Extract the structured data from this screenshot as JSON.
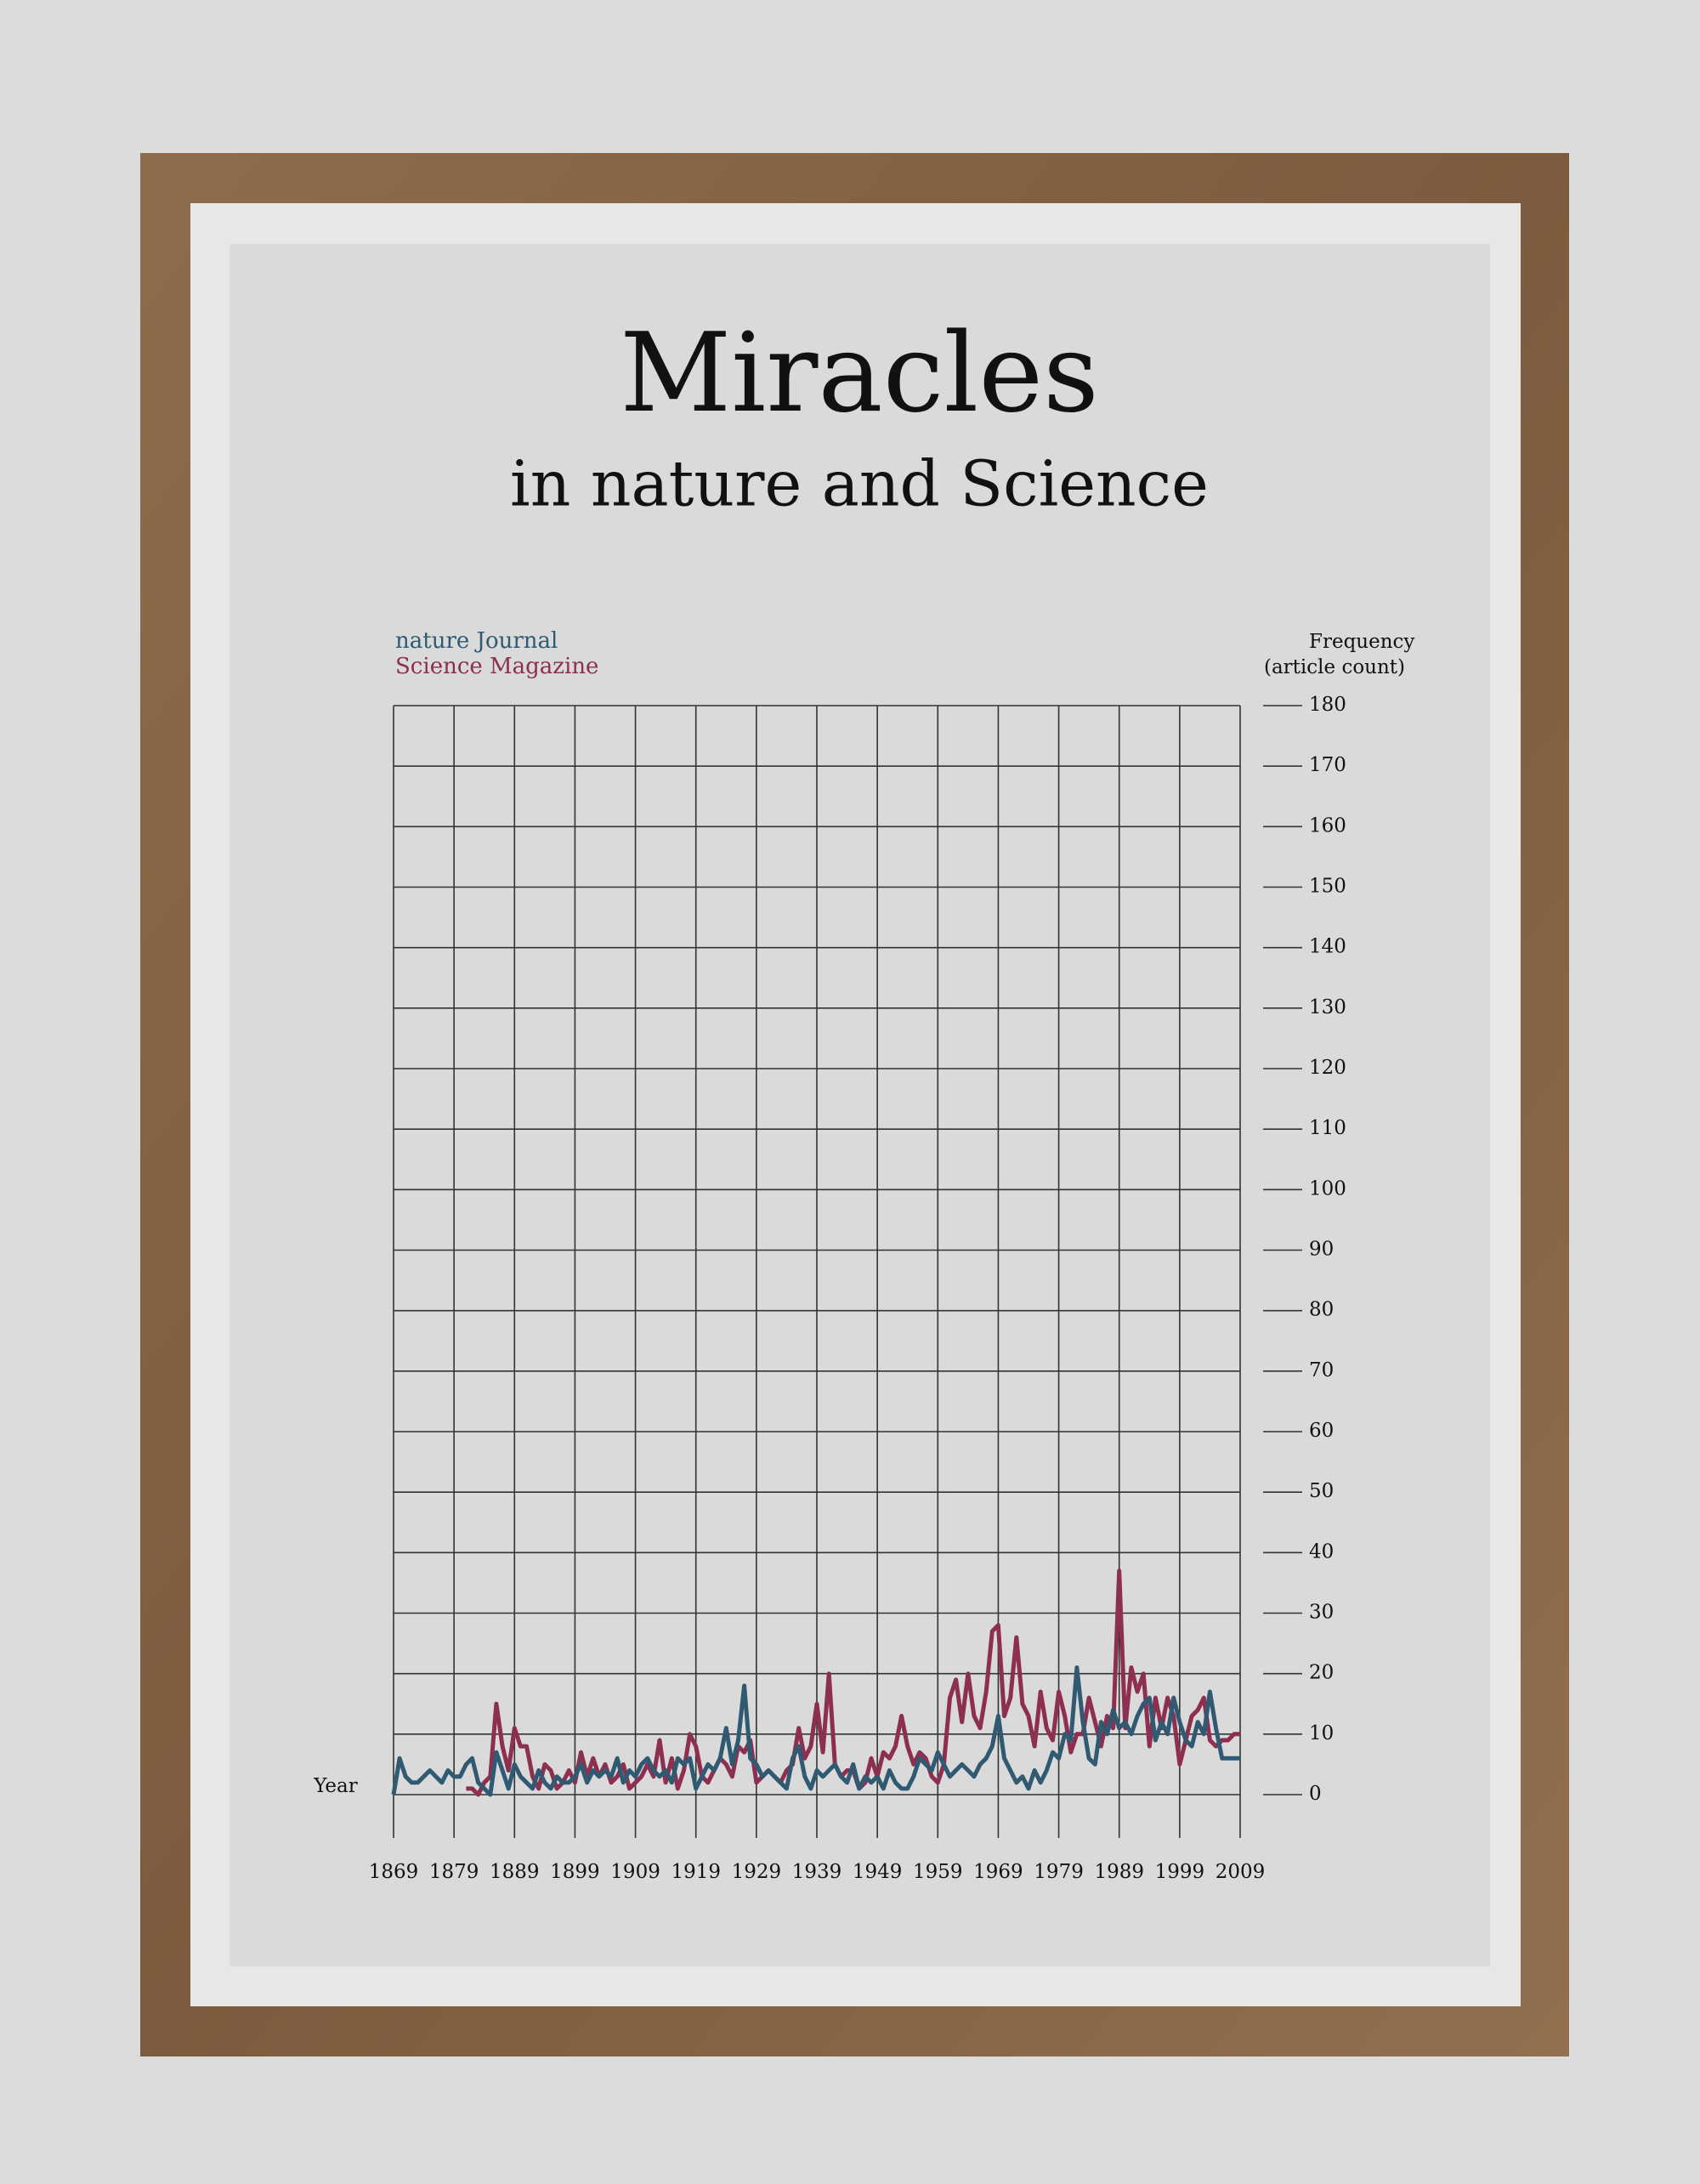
{
  "chart_data": {
    "type": "line",
    "title": "Miracles",
    "subtitle": "in nature and Science",
    "y_label": [
      "Frequency",
      "(article count)"
    ],
    "x_label": "Year",
    "x": [
      1869,
      1870,
      1871,
      1872,
      1873,
      1874,
      1875,
      1876,
      1877,
      1878,
      1879,
      1880,
      1881,
      1882,
      1883,
      1884,
      1885,
      1886,
      1887,
      1888,
      1889,
      1890,
      1891,
      1892,
      1893,
      1894,
      1895,
      1896,
      1897,
      1898,
      1899,
      1900,
      1901,
      1902,
      1903,
      1904,
      1905,
      1906,
      1907,
      1908,
      1909,
      1910,
      1911,
      1912,
      1913,
      1914,
      1915,
      1916,
      1917,
      1918,
      1919,
      1920,
      1921,
      1922,
      1923,
      1924,
      1925,
      1926,
      1927,
      1928,
      1929,
      1930,
      1931,
      1932,
      1933,
      1934,
      1935,
      1936,
      1937,
      1938,
      1939,
      1940,
      1941,
      1942,
      1943,
      1944,
      1945,
      1946,
      1947,
      1948,
      1949,
      1950,
      1951,
      1952,
      1953,
      1954,
      1955,
      1956,
      1957,
      1958,
      1959,
      1960,
      1961,
      1962,
      1963,
      1964,
      1965,
      1966,
      1967,
      1968,
      1969,
      1970,
      1971,
      1972,
      1973,
      1974,
      1975,
      1976,
      1977,
      1978,
      1979,
      1980,
      1981,
      1982,
      1983,
      1984,
      1985,
      1986,
      1987,
      1988,
      1989,
      1990,
      1991,
      1992,
      1993,
      1994,
      1995,
      1996,
      1997,
      1998,
      1999,
      2000,
      2001,
      2002,
      2003,
      2004,
      2005,
      2006,
      2007,
      2008,
      2009
    ],
    "series": [
      {
        "name": "nature Journal",
        "color": "#2f5a72",
        "values": [
          0,
          6,
          3,
          2,
          2,
          3,
          4,
          3,
          2,
          4,
          3,
          3,
          5,
          6,
          2,
          1,
          0,
          7,
          4,
          1,
          5,
          3,
          2,
          1,
          4,
          2,
          1,
          3,
          2,
          2,
          3,
          5,
          2,
          4,
          3,
          4,
          3,
          6,
          2,
          4,
          3,
          5,
          6,
          4,
          3,
          4,
          2,
          6,
          5,
          6,
          1,
          3,
          5,
          4,
          6,
          11,
          5,
          9,
          18,
          6,
          5,
          3,
          4,
          3,
          2,
          1,
          6,
          8,
          3,
          1,
          4,
          3,
          4,
          5,
          3,
          2,
          5,
          1,
          3,
          2,
          3,
          1,
          4,
          2,
          1,
          1,
          3,
          6,
          5,
          4,
          7,
          5,
          3,
          4,
          5,
          4,
          3,
          5,
          6,
          8,
          13,
          6,
          4,
          2,
          3,
          1,
          4,
          2,
          4,
          7,
          6,
          10,
          9,
          21,
          12,
          6,
          5,
          12,
          10,
          14,
          11,
          12,
          10,
          13,
          15,
          16,
          9,
          12,
          10,
          16,
          12,
          9,
          8,
          12,
          10,
          17,
          11,
          6,
          6,
          6,
          6
        ]
      },
      {
        "name": "Science Magazine",
        "color": "#8c2f50",
        "values": [
          null,
          null,
          null,
          null,
          null,
          null,
          null,
          null,
          null,
          null,
          null,
          null,
          1,
          1,
          0,
          2,
          3,
          15,
          8,
          4,
          11,
          8,
          8,
          3,
          1,
          5,
          4,
          1,
          2,
          4,
          2,
          7,
          3,
          6,
          3,
          5,
          2,
          3,
          5,
          1,
          2,
          3,
          5,
          3,
          9,
          2,
          6,
          1,
          4,
          10,
          8,
          3,
          2,
          4,
          6,
          5,
          3,
          8,
          7,
          9,
          2,
          3,
          4,
          3,
          2,
          4,
          5,
          11,
          6,
          8,
          15,
          7,
          20,
          5,
          3,
          4,
          4,
          1,
          2,
          6,
          3,
          7,
          6,
          8,
          13,
          8,
          5,
          7,
          6,
          3,
          2,
          5,
          16,
          19,
          12,
          20,
          13,
          11,
          17,
          27,
          28,
          13,
          16,
          26,
          15,
          13,
          8,
          17,
          11,
          9,
          17,
          13,
          7,
          10,
          10,
          16,
          12,
          8,
          13,
          11,
          37,
          11,
          21,
          17,
          20,
          8,
          16,
          11,
          16,
          13,
          5,
          9,
          13,
          14,
          16,
          9,
          8,
          9,
          9,
          10,
          10
        ]
      }
    ],
    "xlim": [
      1869,
      2009
    ],
    "xticks": [
      1869,
      1879,
      1889,
      1899,
      1909,
      1919,
      1929,
      1939,
      1949,
      1959,
      1969,
      1979,
      1989,
      1999,
      2009
    ],
    "ylim": [
      0,
      180
    ],
    "yticks": [
      0,
      10,
      20,
      30,
      40,
      50,
      60,
      70,
      80,
      90,
      100,
      110,
      120,
      130,
      140,
      150,
      160,
      170,
      180
    ],
    "grid": true
  }
}
